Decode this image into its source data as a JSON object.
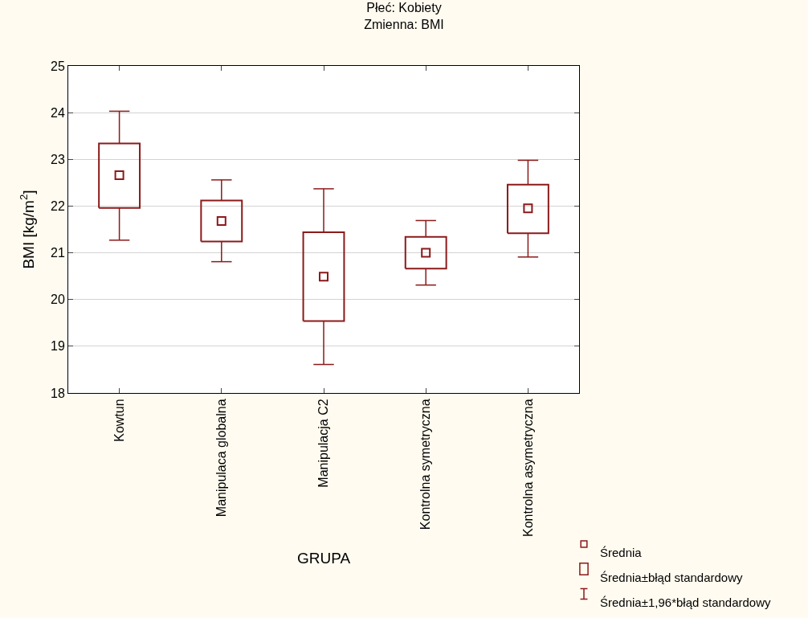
{
  "chart_data": {
    "type": "box",
    "title": "Płeć: Kobiety",
    "subtitle": "Zmienna: BMI",
    "xlabel": "GRUPA",
    "ylabel": "BMI [kg/m$^{2}$]",
    "categories": [
      "Kowtun",
      "Manipulaca globalna",
      "Manipulacja C2",
      "Kontrolna symetryczna",
      "Kontrolna asymetryczna"
    ],
    "color": "#8b1a1a",
    "boxes": [
      {
        "low": 21.27,
        "q1": 21.96,
        "median": 22.66,
        "q3": 23.34,
        "high": 24.03
      },
      {
        "low": 20.81,
        "q1": 21.24,
        "median": 21.68,
        "q3": 22.12,
        "high": 22.56
      },
      {
        "low": 18.61,
        "q1": 19.54,
        "median": 20.49,
        "q3": 21.44,
        "high": 22.37
      },
      {
        "low": 20.31,
        "q1": 20.66,
        "median": 21.0,
        "q3": 21.34,
        "high": 21.69
      },
      {
        "low": 20.91,
        "q1": 21.42,
        "median": 21.95,
        "q3": 22.46,
        "high": 22.98
      }
    ],
    "ylim": [
      18,
      25
    ],
    "yticks": [
      18,
      19,
      20,
      21,
      22,
      23,
      24,
      25
    ],
    "grid": "y",
    "annotations": [
      "Średnia",
      "Średnia±błąd standardowy",
      "Średnia±1,96*błąd standardowy"
    ]
  }
}
